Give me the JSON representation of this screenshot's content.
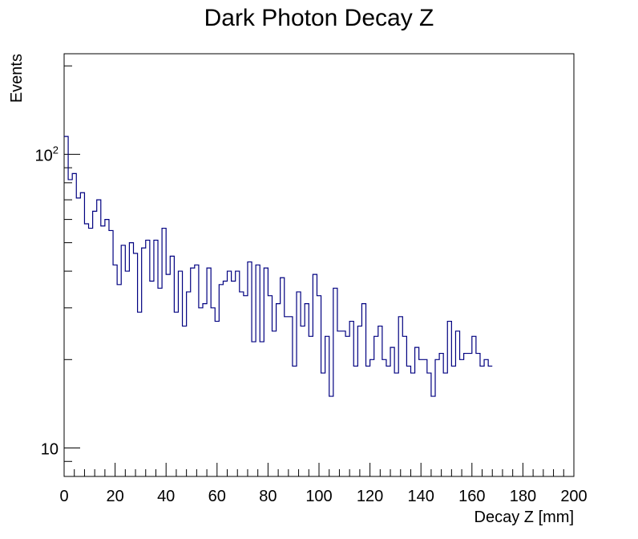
{
  "chart_data": {
    "type": "histogram",
    "title": "Dark Photon Decay Z",
    "xlabel": "Decay Z [mm]",
    "ylabel": "Events",
    "xlim": [
      0,
      200
    ],
    "ylim": [
      8,
      220
    ],
    "yscale": "log",
    "bin_width": 1.6,
    "line_color": "#000080",
    "x_tick_labels": [
      "0",
      "20",
      "40",
      "60",
      "80",
      "100",
      "120",
      "140",
      "160",
      "180",
      "200"
    ],
    "y_tick_labels": [
      {
        "value": 10,
        "base": "10",
        "exp": ""
      },
      {
        "value": 100,
        "base": "10",
        "exp": "2"
      }
    ],
    "values": [
      115,
      82,
      86,
      71,
      74,
      58,
      56,
      64,
      70,
      57,
      60,
      55,
      42,
      36,
      49,
      40,
      50,
      46,
      29,
      48,
      51,
      37,
      51,
      35,
      56,
      39,
      45,
      29,
      40,
      26,
      34,
      41,
      42,
      30,
      31,
      41,
      30,
      27,
      36,
      37,
      40,
      37,
      40,
      34,
      33,
      43,
      23,
      42,
      23,
      41,
      33,
      25,
      31,
      38,
      28,
      28,
      19,
      34,
      26,
      31,
      24,
      39,
      33,
      18,
      24,
      15,
      35,
      25,
      25,
      24,
      27,
      19,
      26,
      31,
      19,
      20,
      24,
      26,
      20,
      19,
      22,
      18,
      28,
      24,
      19,
      18,
      22,
      20,
      20,
      18,
      15,
      20,
      21,
      18,
      27,
      19,
      25,
      20,
      21,
      21,
      24,
      21,
      19,
      20,
      19
    ]
  }
}
